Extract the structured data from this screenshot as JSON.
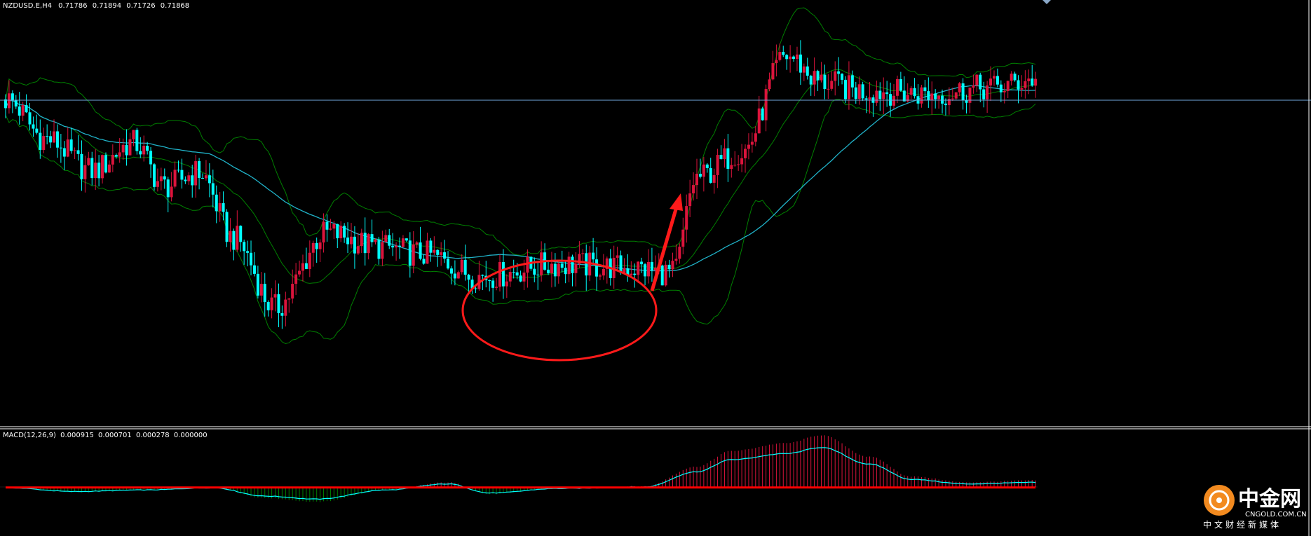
{
  "header": {
    "symbol": "NZDUSD.E,H4",
    "open": "0.71786",
    "high": "0.71894",
    "low": "0.71726",
    "close": "0.71868"
  },
  "macd": {
    "label": "MACD(12,26,9)",
    "v1": "0.000915",
    "v2": "0.000701",
    "v3": "0.000278",
    "v4": "0.000000"
  },
  "watermark": {
    "name_cn": "中金网",
    "domain": "CNGOLD.COM.CN",
    "subtitle": "中文财经新媒体"
  },
  "colors": {
    "background": "#000000",
    "bull_candle": "#dc143c",
    "bear_candle": "#00ffff",
    "bollinger": "#008000",
    "moving_average": "#20b2c8",
    "price_line": "#6fa8dc",
    "macd_line": "#00ffff",
    "signal_line": "#ff0000",
    "histogram_positive": "#dc143c",
    "histogram_negative": "#008000",
    "annotation": "#ff1a1a"
  },
  "chart_data": {
    "type": "candlestick",
    "symbol": "NZDUSD",
    "timeframe": "H4",
    "current_price": 0.71868,
    "price_range": [
      0.6994,
      0.7225
    ],
    "price_keypoints": [
      [
        0,
        0.7175
      ],
      [
        12,
        0.7152
      ],
      [
        25,
        0.7134
      ],
      [
        37,
        0.715
      ],
      [
        46,
        0.7125
      ],
      [
        56,
        0.7133
      ],
      [
        66,
        0.7095
      ],
      [
        78,
        0.7055
      ],
      [
        93,
        0.7098
      ],
      [
        108,
        0.709
      ],
      [
        120,
        0.7086
      ],
      [
        138,
        0.7073
      ],
      [
        160,
        0.708
      ],
      [
        180,
        0.7078
      ],
      [
        193,
        0.7075
      ],
      [
        200,
        0.713
      ],
      [
        213,
        0.7145
      ],
      [
        226,
        0.72
      ],
      [
        236,
        0.7185
      ],
      [
        248,
        0.718
      ],
      [
        268,
        0.7178
      ],
      [
        286,
        0.7182
      ],
      [
        298,
        0.71868
      ]
    ],
    "macd_keypoints": [
      [
        0,
        -5e-05
      ],
      [
        20,
        -0.0003
      ],
      [
        40,
        -0.0002
      ],
      [
        60,
        -5e-05
      ],
      [
        75,
        -0.0006
      ],
      [
        90,
        -0.0008
      ],
      [
        110,
        -0.0002
      ],
      [
        128,
        0.0002
      ],
      [
        140,
        -0.0004
      ],
      [
        160,
        -0.0001
      ],
      [
        185,
        0.0
      ],
      [
        200,
        0.001
      ],
      [
        210,
        0.0018
      ],
      [
        226,
        0.0022
      ],
      [
        236,
        0.0026
      ],
      [
        250,
        0.0015
      ],
      [
        262,
        0.0005
      ],
      [
        278,
        0.0002
      ],
      [
        298,
        0.0003
      ]
    ],
    "annotations": [
      {
        "type": "ellipse",
        "label": "consolidation zone"
      },
      {
        "type": "arrow",
        "label": "breakout up"
      }
    ]
  }
}
